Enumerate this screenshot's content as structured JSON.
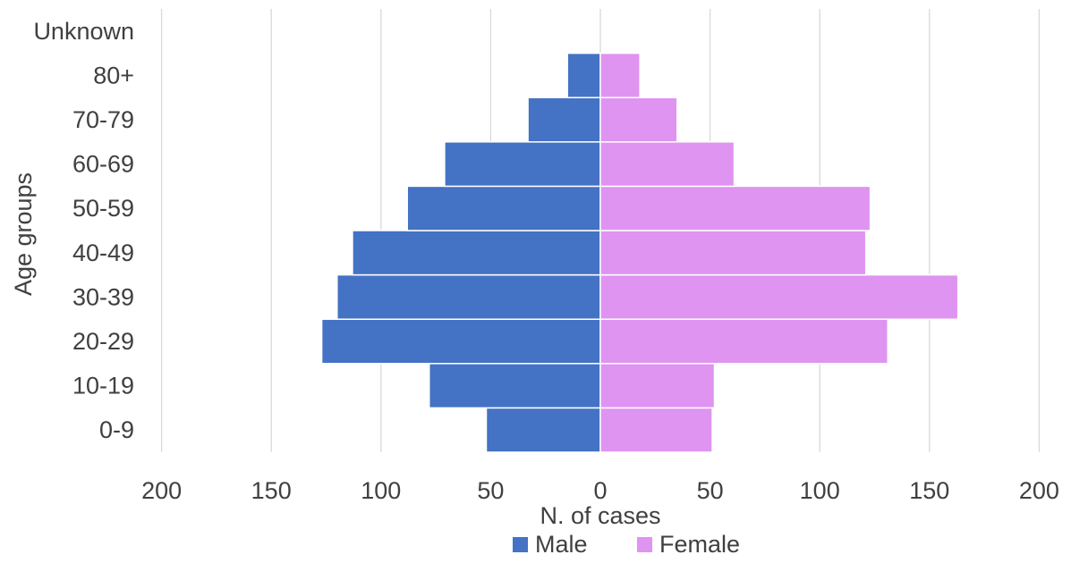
{
  "chart_data": {
    "type": "bar",
    "orientation": "horizontal",
    "layout": "population-pyramid",
    "categories": [
      "0-9",
      "10-19",
      "20-29",
      "30-39",
      "40-49",
      "50-59",
      "60-69",
      "70-79",
      "80+",
      "Unknown"
    ],
    "series": [
      {
        "name": "Male",
        "values": [
          52,
          78,
          127,
          120,
          113,
          88,
          71,
          33,
          15,
          0
        ],
        "color": "#4472C4",
        "side": "left"
      },
      {
        "name": "Female",
        "values": [
          51,
          52,
          131,
          163,
          121,
          123,
          61,
          35,
          18,
          0
        ],
        "color": "#DE94F0",
        "side": "right"
      }
    ],
    "x_ticks": [
      "200",
      "150",
      "100",
      "50",
      "0",
      "50",
      "100",
      "150",
      "200"
    ],
    "xlim": [
      -200,
      200
    ],
    "xlabel": "N. of cases",
    "ylabel": "Age groups",
    "title": "",
    "grid": "vertical",
    "legend_position": "bottom"
  }
}
